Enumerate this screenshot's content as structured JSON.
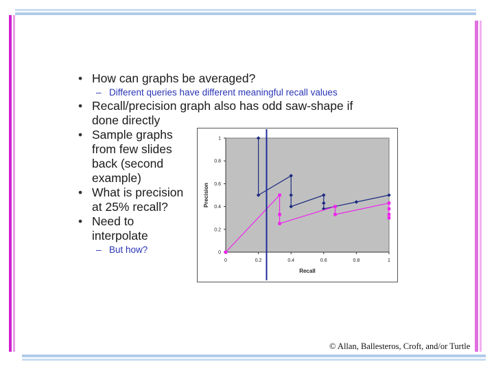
{
  "slide": {
    "bullets": [
      {
        "text": "How can graphs be averaged?",
        "sub": "Different queries have different meaningful recall values"
      },
      {
        "lines": [
          "Recall/precision graph also has odd saw-shape if",
          "done directly"
        ]
      },
      {
        "lines": [
          "Sample graphs",
          "from few slides",
          "back (second",
          "example)"
        ]
      },
      {
        "lines": [
          "What is precision",
          "at 25% recall?"
        ]
      },
      {
        "lines": [
          "Need to",
          "interpolate"
        ],
        "sub": "But how?"
      }
    ],
    "bullet_marker": "•",
    "sub_marker": "–",
    "credit": "© Allan, Ballesteros, Croft, and/or Turtle"
  },
  "chart_data": {
    "type": "line",
    "xlabel": "Recall",
    "ylabel": "Precision",
    "xlim": [
      0,
      1
    ],
    "ylim": [
      0,
      1
    ],
    "xticks": [
      0,
      0.2,
      0.4,
      0.6,
      0.8,
      1
    ],
    "xtick_labels": [
      "0",
      "0.2",
      "0.4",
      "0.6",
      "0.8",
      "1"
    ],
    "yticks": [
      0,
      0.2,
      0.4,
      0.6,
      0.8,
      1
    ],
    "ytick_labels": [
      "0",
      "0.2",
      "0.4",
      "0.6",
      "0.8",
      "1"
    ],
    "plot_background": "#c0c0c0",
    "grid": false,
    "vertical_marker_x": 0.25,
    "vertical_marker_color": "#1c2a9c",
    "series": [
      {
        "color": "#1c2a80",
        "marker": "diamond",
        "points": [
          [
            0.2,
            1.0
          ],
          [
            0.2,
            0.5
          ],
          [
            0.4,
            0.67
          ],
          [
            0.4,
            0.5
          ],
          [
            0.4,
            0.4
          ],
          [
            0.6,
            0.5
          ],
          [
            0.6,
            0.43
          ],
          [
            0.6,
            0.38
          ],
          [
            0.8,
            0.44
          ],
          [
            1.0,
            0.5
          ]
        ]
      },
      {
        "color": "#ee22ee",
        "marker": "square",
        "points": [
          [
            0.0,
            0.0
          ],
          [
            0.33,
            0.5
          ],
          [
            0.33,
            0.33
          ],
          [
            0.33,
            0.25
          ],
          [
            0.67,
            0.4
          ],
          [
            0.67,
            0.33
          ],
          [
            1.0,
            0.43
          ],
          [
            1.0,
            0.38
          ],
          [
            1.0,
            0.33
          ],
          [
            1.0,
            0.3
          ]
        ]
      }
    ]
  }
}
